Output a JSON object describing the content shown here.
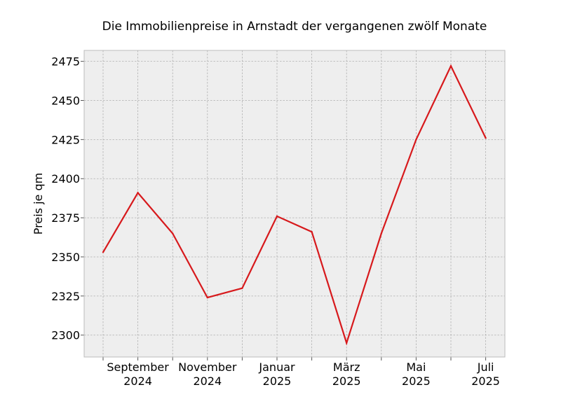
{
  "chart_data": {
    "type": "line",
    "title": "Die Immobilienpreise in Arnstadt der vergangenen zwölf Monate",
    "xlabel": "",
    "ylabel": "Preis je qm",
    "x": [
      "2024-08",
      "2024-09",
      "2024-10",
      "2024-11",
      "2024-12",
      "2025-01",
      "2025-02",
      "2025-03",
      "2025-04",
      "2025-05",
      "2025-06",
      "2025-07"
    ],
    "series": [
      {
        "values": [
          2353,
          2391,
          2365,
          2324,
          2330,
          2376,
          2366,
          2295,
          2365,
          2425,
          2472,
          2426
        ]
      }
    ],
    "ylim": [
      2286,
      2482
    ],
    "yticks": [
      2300,
      2325,
      2350,
      2375,
      2400,
      2425,
      2450,
      2475
    ],
    "xtick_labels": [
      {
        "x": "2024-09",
        "line1": "September",
        "line2": "2024"
      },
      {
        "x": "2024-11",
        "line1": "November",
        "line2": "2024"
      },
      {
        "x": "2025-01",
        "line1": "Januar",
        "line2": "2025"
      },
      {
        "x": "2025-03",
        "line1": "März",
        "line2": "2025"
      },
      {
        "x": "2025-05",
        "line1": "Mai",
        "line2": "2025"
      },
      {
        "x": "2025-07",
        "line1": "Juli",
        "line2": "2025"
      }
    ],
    "grid": true,
    "colors": {
      "line": "#d7191c",
      "plot_background": "#eeeeee",
      "grid": "#b0b0b0",
      "frame": "#bcbcbc"
    }
  }
}
